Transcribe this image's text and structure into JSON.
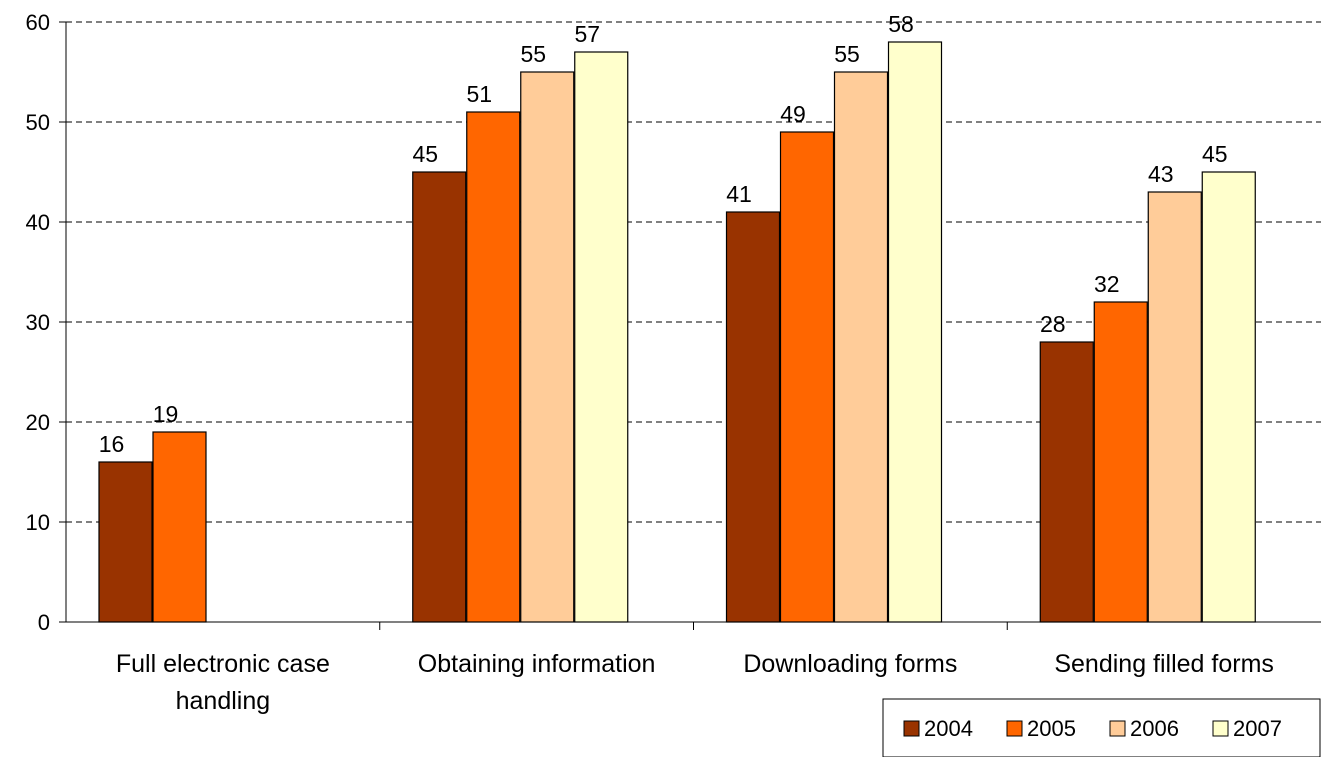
{
  "chart_data": {
    "type": "bar",
    "title": "",
    "xlabel": "",
    "ylabel": "",
    "ylim": [
      0,
      60
    ],
    "yticks": [
      0,
      10,
      20,
      30,
      40,
      50,
      60
    ],
    "grid": "horizontal dashed",
    "legend_position": "bottom-right",
    "categories": [
      [
        "Full electronic case",
        "handling"
      ],
      [
        "Obtaining information"
      ],
      [
        "Downloading forms"
      ],
      [
        "Sending filled forms"
      ]
    ],
    "series": [
      {
        "name": "2004",
        "color": "#993300",
        "values": [
          16,
          45,
          41,
          28
        ]
      },
      {
        "name": "2005",
        "color": "#FF6600",
        "values": [
          19,
          51,
          49,
          32
        ]
      },
      {
        "name": "2006",
        "color": "#FFCC99",
        "values": [
          null,
          55,
          55,
          43
        ]
      },
      {
        "name": "2007",
        "color": "#FFFFCC",
        "values": [
          null,
          57,
          58,
          45
        ]
      }
    ]
  }
}
